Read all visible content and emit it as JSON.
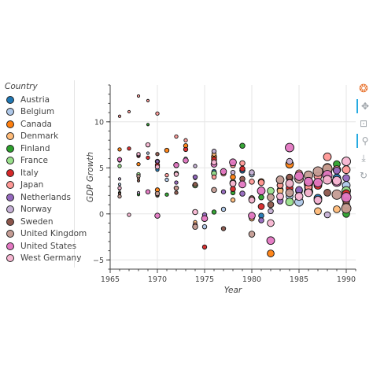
{
  "chart_data": {
    "type": "scatter",
    "title": "",
    "xlabel": "Year",
    "ylabel": "GDP Growth",
    "xlim": [
      1965,
      1991
    ],
    "ylim": [
      -6,
      14
    ],
    "x_ticks": [
      1965,
      1970,
      1975,
      1980,
      1985,
      1990
    ],
    "y_ticks": [
      -5,
      0,
      5,
      10
    ],
    "x_tick_labels": [
      "1965",
      "1970",
      "1975",
      "1980",
      "1985",
      "1990"
    ],
    "y_tick_labels": [
      "−5",
      "0",
      "5",
      "10"
    ],
    "grid": true,
    "legend_placement": "left",
    "legend_title": "Country",
    "series": [
      {
        "name": "Austria",
        "color": "#1f77b4",
        "points": [
          [
            1966,
            6.0,
            3
          ],
          [
            1970,
            4.8,
            4
          ],
          [
            1974,
            3.9,
            4
          ],
          [
            1976,
            4.6,
            5
          ],
          [
            1979,
            4.7,
            6
          ],
          [
            1981,
            -0.2,
            6
          ],
          [
            1983,
            2.6,
            7
          ],
          [
            1985,
            2.5,
            8
          ],
          [
            1987,
            1.7,
            9
          ],
          [
            1989,
            3.9,
            9
          ]
        ]
      },
      {
        "name": "Belgium",
        "color": "#aec7e8",
        "points": [
          [
            1966,
            3.2,
            3
          ],
          [
            1969,
            6.6,
            3
          ],
          [
            1971,
            3.7,
            4
          ],
          [
            1973,
            6.0,
            4
          ],
          [
            1975,
            -1.4,
            5
          ],
          [
            1977,
            0.5,
            5
          ],
          [
            1980,
            4.3,
            6
          ],
          [
            1984,
            1.9,
            8
          ],
          [
            1985,
            1.3,
            10
          ],
          [
            1988,
            4.8,
            9
          ],
          [
            1990,
            3.1,
            9
          ]
        ]
      },
      {
        "name": "Canada",
        "color": "#ff7f0e",
        "points": [
          [
            1966,
            7.0,
            4
          ],
          [
            1968,
            5.4,
            4
          ],
          [
            1970,
            2.6,
            5
          ],
          [
            1971,
            6.9,
            5
          ],
          [
            1973,
            7.4,
            5
          ],
          [
            1976,
            6.2,
            6
          ],
          [
            1978,
            4.0,
            6
          ],
          [
            1981,
            3.5,
            7
          ],
          [
            1982,
            -4.3,
            8
          ],
          [
            1984,
            5.4,
            9
          ],
          [
            1986,
            3.3,
            10
          ],
          [
            1988,
            5.0,
            10
          ],
          [
            1990,
            0.5,
            9
          ]
        ]
      },
      {
        "name": "Denmark",
        "color": "#ffbb78",
        "points": [
          [
            1966,
            2.7,
            3
          ],
          [
            1968,
            3.9,
            3
          ],
          [
            1970,
            2.0,
            4
          ],
          [
            1972,
            5.3,
            4
          ],
          [
            1974,
            -0.9,
            4
          ],
          [
            1976,
            6.5,
            5
          ],
          [
            1978,
            1.5,
            5
          ],
          [
            1980,
            -0.5,
            6
          ],
          [
            1983,
            2.5,
            7
          ],
          [
            1985,
            4.3,
            8
          ],
          [
            1987,
            0.3,
            8
          ],
          [
            1989,
            0.5,
            8
          ],
          [
            1990,
            1.0,
            8
          ]
        ]
      },
      {
        "name": "Finland",
        "color": "#2ca02c",
        "points": [
          [
            1966,
            2.3,
            3
          ],
          [
            1968,
            2.1,
            3
          ],
          [
            1969,
            9.7,
            3
          ],
          [
            1971,
            2.1,
            4
          ],
          [
            1974,
            3.1,
            4
          ],
          [
            1976,
            0.2,
            5
          ],
          [
            1978,
            2.3,
            5
          ],
          [
            1979,
            7.4,
            6
          ],
          [
            1981,
            1.8,
            6
          ],
          [
            1983,
            3.1,
            7
          ],
          [
            1984,
            3.3,
            7
          ],
          [
            1986,
            2.4,
            8
          ],
          [
            1989,
            5.4,
            8
          ],
          [
            1990,
            0.0,
            8
          ]
        ]
      },
      {
        "name": "France",
        "color": "#98df8a",
        "points": [
          [
            1966,
            5.2,
            4
          ],
          [
            1968,
            4.3,
            4
          ],
          [
            1970,
            5.7,
            5
          ],
          [
            1972,
            4.4,
            5
          ],
          [
            1974,
            3.1,
            6
          ],
          [
            1976,
            4.4,
            6
          ],
          [
            1978,
            3.4,
            7
          ],
          [
            1980,
            1.6,
            7
          ],
          [
            1982,
            2.5,
            8
          ],
          [
            1984,
            1.3,
            9
          ],
          [
            1986,
            2.4,
            10
          ],
          [
            1988,
            4.5,
            10
          ],
          [
            1990,
            2.5,
            10
          ]
        ]
      },
      {
        "name": "Italy",
        "color": "#d62728",
        "points": [
          [
            1966,
            5.8,
            4
          ],
          [
            1967,
            7.1,
            4
          ],
          [
            1968,
            6.3,
            4
          ],
          [
            1969,
            6.1,
            4
          ],
          [
            1970,
            5.3,
            5
          ],
          [
            1972,
            2.8,
            5
          ],
          [
            1973,
            7.0,
            5
          ],
          [
            1975,
            -3.6,
            5
          ],
          [
            1976,
            5.9,
            6
          ],
          [
            1978,
            2.7,
            6
          ],
          [
            1979,
            4.9,
            6
          ],
          [
            1981,
            0.8,
            7
          ],
          [
            1984,
            2.8,
            8
          ],
          [
            1986,
            2.9,
            9
          ],
          [
            1987,
            3.1,
            9
          ],
          [
            1988,
            3.9,
            9
          ],
          [
            1990,
            2.2,
            9
          ]
        ]
      },
      {
        "name": "Japan",
        "color": "#ff9896",
        "points": [
          [
            1966,
            10.6,
            3
          ],
          [
            1967,
            11.1,
            3
          ],
          [
            1968,
            12.8,
            3
          ],
          [
            1969,
            12.3,
            3
          ],
          [
            1970,
            10.9,
            4
          ],
          [
            1971,
            4.2,
            4
          ],
          [
            1972,
            8.4,
            4
          ],
          [
            1973,
            8.0,
            4
          ],
          [
            1974,
            -1.2,
            5
          ],
          [
            1976,
            4.0,
            5
          ],
          [
            1977,
            4.4,
            6
          ],
          [
            1978,
            5.3,
            6
          ],
          [
            1979,
            5.5,
            6
          ],
          [
            1980,
            3.5,
            6
          ],
          [
            1981,
            3.4,
            7
          ],
          [
            1983,
            3.1,
            7
          ],
          [
            1984,
            3.9,
            8
          ],
          [
            1985,
            4.4,
            8
          ],
          [
            1986,
            2.9,
            8
          ],
          [
            1987,
            4.1,
            9
          ],
          [
            1988,
            6.2,
            9
          ],
          [
            1989,
            4.8,
            9
          ],
          [
            1990,
            4.8,
            9
          ]
        ]
      },
      {
        "name": "Netherlands",
        "color": "#9467bd",
        "points": [
          [
            1966,
            2.7,
            3
          ],
          [
            1968,
            6.4,
            4
          ],
          [
            1970,
            5.7,
            4
          ],
          [
            1972,
            3.4,
            4
          ],
          [
            1974,
            4.0,
            5
          ],
          [
            1975,
            -0.1,
            5
          ],
          [
            1977,
            2.4,
            5
          ],
          [
            1979,
            2.2,
            6
          ],
          [
            1981,
            -0.7,
            6
          ],
          [
            1983,
            1.4,
            7
          ],
          [
            1985,
            2.6,
            8
          ],
          [
            1987,
            1.4,
            8
          ],
          [
            1989,
            4.7,
            8
          ],
          [
            1990,
            3.9,
            8
          ]
        ]
      },
      {
        "name": "Norway",
        "color": "#c5b0d5",
        "points": [
          [
            1966,
            3.8,
            3
          ],
          [
            1968,
            2.3,
            3
          ],
          [
            1970,
            2.1,
            4
          ],
          [
            1972,
            5.2,
            4
          ],
          [
            1974,
            5.2,
            4
          ],
          [
            1976,
            6.8,
            5
          ],
          [
            1978,
            4.5,
            5
          ],
          [
            1980,
            4.5,
            6
          ],
          [
            1982,
            0.3,
            6
          ],
          [
            1984,
            5.7,
            7
          ],
          [
            1986,
            3.6,
            7
          ],
          [
            1988,
            -0.1,
            7
          ],
          [
            1990,
            1.9,
            7
          ]
        ]
      },
      {
        "name": "Sweden",
        "color": "#8c564b",
        "points": [
          [
            1966,
            2.2,
            3
          ],
          [
            1968,
            3.6,
            3
          ],
          [
            1970,
            6.5,
            4
          ],
          [
            1972,
            2.3,
            4
          ],
          [
            1974,
            3.2,
            5
          ],
          [
            1977,
            -1.6,
            5
          ],
          [
            1979,
            3.8,
            6
          ],
          [
            1980,
            1.7,
            6
          ],
          [
            1982,
            1.0,
            7
          ],
          [
            1984,
            4.0,
            7
          ],
          [
            1986,
            2.3,
            8
          ],
          [
            1988,
            2.3,
            8
          ],
          [
            1990,
            1.4,
            8
          ]
        ]
      },
      {
        "name": "United Kingdom",
        "color": "#c49c94",
        "points": [
          [
            1966,
            1.9,
            4
          ],
          [
            1968,
            4.1,
            4
          ],
          [
            1970,
            2.2,
            5
          ],
          [
            1972,
            2.8,
            5
          ],
          [
            1974,
            -1.4,
            6
          ],
          [
            1976,
            2.6,
            6
          ],
          [
            1978,
            3.3,
            7
          ],
          [
            1980,
            -2.2,
            7
          ],
          [
            1982,
            1.8,
            8
          ],
          [
            1983,
            3.7,
            9
          ],
          [
            1984,
            2.3,
            9
          ],
          [
            1985,
            3.8,
            10
          ],
          [
            1986,
            4.2,
            10
          ],
          [
            1987,
            4.6,
            11
          ],
          [
            1988,
            4.9,
            11
          ],
          [
            1989,
            2.1,
            11
          ],
          [
            1990,
            0.6,
            11
          ]
        ]
      },
      {
        "name": "United States",
        "color": "#e377c2",
        "points": [
          [
            1966,
            5.9,
            5
          ],
          [
            1969,
            2.4,
            5
          ],
          [
            1970,
            -0.2,
            6
          ],
          [
            1972,
            5.3,
            6
          ],
          [
            1973,
            5.8,
            6
          ],
          [
            1975,
            -0.5,
            7
          ],
          [
            1976,
            5.4,
            7
          ],
          [
            1977,
            4.6,
            7
          ],
          [
            1978,
            5.6,
            8
          ],
          [
            1979,
            3.2,
            8
          ],
          [
            1980,
            -0.2,
            8
          ],
          [
            1981,
            2.5,
            9
          ],
          [
            1982,
            -2.9,
            9
          ],
          [
            1984,
            7.2,
            10
          ],
          [
            1985,
            4.1,
            10
          ],
          [
            1986,
            3.5,
            10
          ],
          [
            1987,
            3.4,
            10
          ],
          [
            1988,
            4.2,
            11
          ],
          [
            1989,
            3.5,
            11
          ],
          [
            1990,
            1.8,
            11
          ]
        ]
      },
      {
        "name": "West Germany",
        "color": "#f7b6d2",
        "points": [
          [
            1966,
            2.8,
            4
          ],
          [
            1967,
            -0.1,
            4
          ],
          [
            1968,
            6.5,
            4
          ],
          [
            1969,
            7.5,
            5
          ],
          [
            1970,
            5.1,
            5
          ],
          [
            1972,
            4.3,
            5
          ],
          [
            1974,
            0.2,
            6
          ],
          [
            1976,
            5.6,
            6
          ],
          [
            1978,
            3.3,
            7
          ],
          [
            1980,
            1.5,
            7
          ],
          [
            1982,
            -1.0,
            8
          ],
          [
            1983,
            1.9,
            8
          ],
          [
            1984,
            3.3,
            9
          ],
          [
            1985,
            1.9,
            9
          ],
          [
            1986,
            2.3,
            9
          ],
          [
            1987,
            1.5,
            9
          ],
          [
            1988,
            3.7,
            10
          ],
          [
            1989,
            3.6,
            10
          ],
          [
            1990,
            5.7,
            10
          ]
        ]
      }
    ]
  },
  "toolbar": {
    "tools": [
      {
        "name": "bokeh-logo-icon",
        "glyph": "❂"
      },
      {
        "name": "pan-tool-icon",
        "glyph": "✥"
      },
      {
        "name": "box-zoom-tool-icon",
        "glyph": "⊡"
      },
      {
        "name": "hover-tool-icon",
        "glyph": "⚲"
      },
      {
        "name": "save-tool-icon",
        "glyph": "⤓"
      },
      {
        "name": "reset-tool-icon",
        "glyph": "↻"
      }
    ]
  }
}
